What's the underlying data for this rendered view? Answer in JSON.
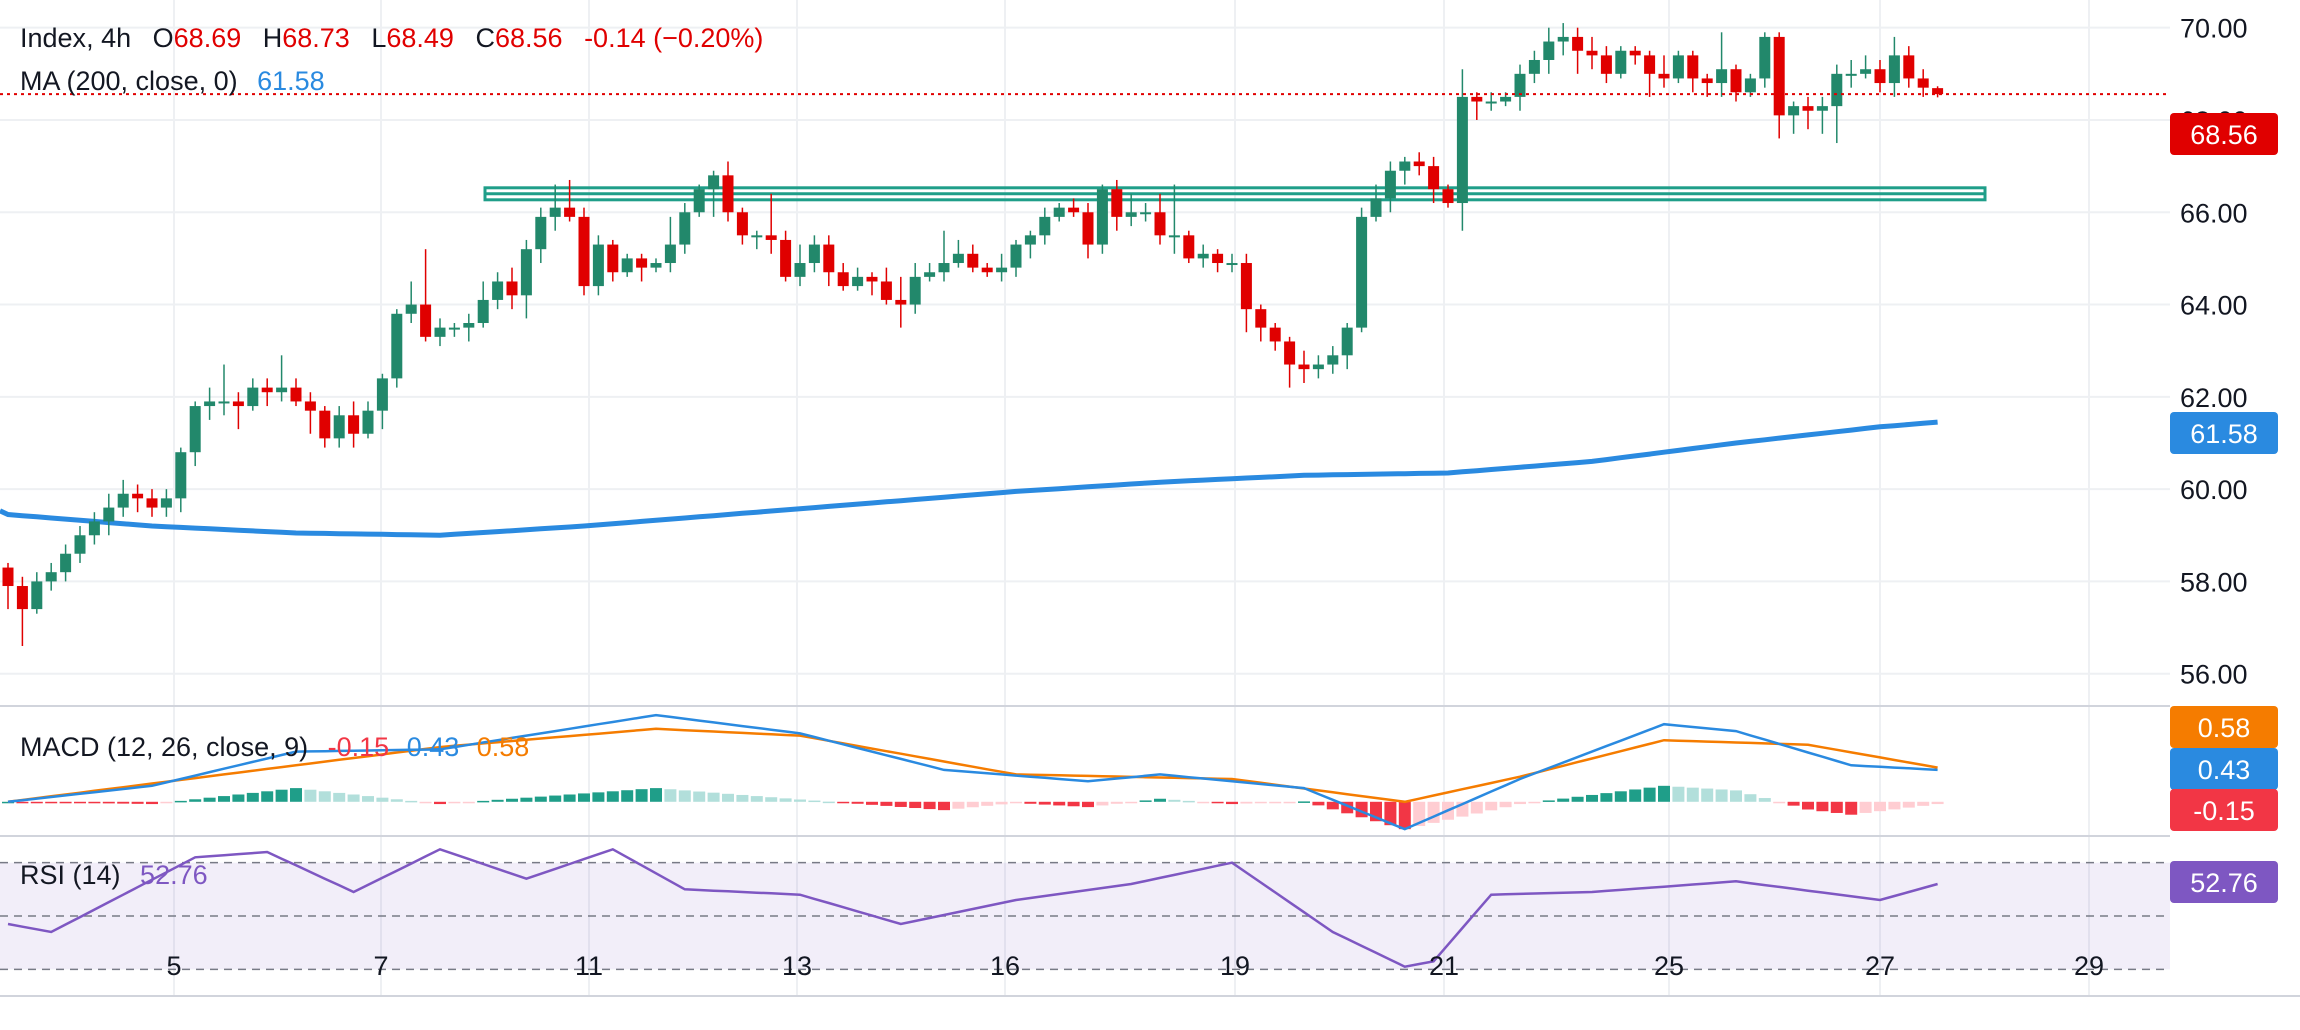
{
  "header": {
    "symbol": "Index",
    "timeframe": "4h",
    "o_label": "O",
    "o_value": "68.69",
    "h_label": "H",
    "h_value": "68.73",
    "l_label": "L",
    "l_value": "68.49",
    "c_label": "C",
    "c_value": "68.56",
    "change": "-0.14 (−0.20%)"
  },
  "ma_legend": {
    "label": "MA (200, close, 0)",
    "value": "61.58"
  },
  "macd_legend": {
    "label": "MACD (12, 26, close, 9)",
    "hist": "-0.15",
    "macd": "0.43",
    "signal": "0.58"
  },
  "rsi_legend": {
    "label": "RSI (14)",
    "value": "52.76"
  },
  "badges": {
    "price": "68.56",
    "ma": "61.58",
    "signal": "0.58",
    "macd": "0.43",
    "hist": "-0.15",
    "rsi": "52.76"
  },
  "colors": {
    "up": "#26a69a",
    "up_body": "#22886b",
    "down": "#f23645",
    "down_body": "#e00000",
    "ma": "#2a8ae0",
    "macd": "#2a8ae0",
    "signal": "#f57c00",
    "rsi": "#7e57c2",
    "level": "#1f9e89",
    "price_line": "#e00000"
  },
  "chart_data": {
    "type": "candlestick",
    "instrument": "Index",
    "timeframe": "4h",
    "x_ticks": [
      "5",
      "7",
      "11",
      "13",
      "16",
      "19",
      "21",
      "25",
      "27",
      "29"
    ],
    "y_ticks": [
      "56.00",
      "58.00",
      "60.00",
      "62.00",
      "64.00",
      "66.00",
      "68.00",
      "70.00"
    ],
    "ylim": [
      55.3,
      70.6
    ],
    "current_price": 68.56,
    "horizontal_level": 66.4,
    "candles": [
      [
        58.3,
        57.9,
        58.4,
        57.4
      ],
      [
        57.9,
        57.4,
        58.1,
        56.6
      ],
      [
        57.4,
        58.0,
        58.2,
        57.3
      ],
      [
        58.0,
        58.2,
        58.4,
        57.8
      ],
      [
        58.2,
        58.6,
        58.8,
        58.0
      ],
      [
        58.6,
        59.0,
        59.2,
        58.4
      ],
      [
        59.0,
        59.3,
        59.5,
        58.8
      ],
      [
        59.3,
        59.6,
        59.9,
        59.0
      ],
      [
        59.6,
        59.9,
        60.2,
        59.4
      ],
      [
        59.9,
        59.8,
        60.1,
        59.5
      ],
      [
        59.8,
        59.6,
        60.0,
        59.4
      ],
      [
        59.6,
        59.8,
        60.0,
        59.4
      ],
      [
        59.8,
        60.8,
        60.9,
        59.5
      ],
      [
        60.8,
        61.8,
        61.9,
        60.5
      ],
      [
        61.8,
        61.9,
        62.2,
        61.5
      ],
      [
        61.9,
        61.9,
        62.7,
        61.6
      ],
      [
        61.9,
        61.8,
        62.1,
        61.3
      ],
      [
        61.8,
        62.2,
        62.4,
        61.7
      ],
      [
        62.2,
        62.1,
        62.4,
        61.8
      ],
      [
        62.1,
        62.2,
        62.9,
        61.9
      ],
      [
        62.2,
        61.9,
        62.4,
        61.8
      ],
      [
        61.9,
        61.7,
        62.1,
        61.2
      ],
      [
        61.7,
        61.1,
        61.8,
        60.9
      ],
      [
        61.1,
        61.6,
        61.8,
        60.9
      ],
      [
        61.6,
        61.2,
        61.9,
        60.9
      ],
      [
        61.2,
        61.7,
        61.9,
        61.1
      ],
      [
        61.7,
        62.4,
        62.5,
        61.3
      ],
      [
        62.4,
        63.8,
        63.9,
        62.2
      ],
      [
        63.8,
        64.0,
        64.5,
        63.6
      ],
      [
        64.0,
        63.3,
        65.2,
        63.2
      ],
      [
        63.3,
        63.5,
        63.7,
        63.1
      ],
      [
        63.5,
        63.5,
        63.6,
        63.3
      ],
      [
        63.5,
        63.6,
        63.8,
        63.2
      ],
      [
        63.6,
        64.1,
        64.5,
        63.5
      ],
      [
        64.1,
        64.5,
        64.7,
        63.9
      ],
      [
        64.5,
        64.2,
        64.8,
        63.9
      ],
      [
        64.2,
        65.2,
        65.4,
        63.7
      ],
      [
        65.2,
        65.9,
        66.1,
        64.9
      ],
      [
        65.9,
        66.1,
        66.6,
        65.6
      ],
      [
        66.1,
        65.9,
        66.7,
        65.8
      ],
      [
        65.9,
        64.4,
        66.1,
        64.2
      ],
      [
        64.4,
        65.3,
        65.5,
        64.2
      ],
      [
        65.3,
        64.7,
        65.4,
        64.5
      ],
      [
        64.7,
        65.0,
        65.1,
        64.6
      ],
      [
        65.0,
        64.8,
        65.1,
        64.5
      ],
      [
        64.8,
        64.9,
        65.0,
        64.7
      ],
      [
        64.9,
        65.3,
        65.9,
        64.7
      ],
      [
        65.3,
        66.0,
        66.2,
        65.1
      ],
      [
        66.0,
        66.5,
        66.6,
        65.9
      ],
      [
        66.5,
        66.8,
        66.9,
        65.9
      ],
      [
        66.8,
        66.0,
        67.1,
        65.8
      ],
      [
        66.0,
        65.5,
        66.1,
        65.3
      ],
      [
        65.5,
        65.5,
        65.6,
        65.2
      ],
      [
        65.5,
        65.4,
        66.4,
        65.1
      ],
      [
        65.4,
        64.6,
        65.6,
        64.5
      ],
      [
        64.6,
        64.9,
        65.3,
        64.4
      ],
      [
        64.9,
        65.3,
        65.5,
        64.7
      ],
      [
        65.3,
        64.7,
        65.5,
        64.4
      ],
      [
        64.7,
        64.4,
        64.9,
        64.3
      ],
      [
        64.4,
        64.6,
        64.8,
        64.3
      ],
      [
        64.6,
        64.5,
        64.7,
        64.2
      ],
      [
        64.5,
        64.1,
        64.8,
        64.0
      ],
      [
        64.1,
        64.0,
        64.6,
        63.5
      ],
      [
        64.0,
        64.6,
        64.9,
        63.8
      ],
      [
        64.6,
        64.7,
        64.9,
        64.5
      ],
      [
        64.7,
        64.9,
        65.6,
        64.5
      ],
      [
        64.9,
        65.1,
        65.4,
        64.8
      ],
      [
        65.1,
        64.8,
        65.3,
        64.7
      ],
      [
        64.8,
        64.7,
        64.9,
        64.6
      ],
      [
        64.7,
        64.8,
        65.1,
        64.5
      ],
      [
        64.8,
        65.3,
        65.4,
        64.6
      ],
      [
        65.3,
        65.5,
        65.6,
        65.0
      ],
      [
        65.5,
        65.9,
        66.1,
        65.3
      ],
      [
        65.9,
        66.1,
        66.2,
        65.8
      ],
      [
        66.1,
        66.0,
        66.3,
        65.9
      ],
      [
        66.0,
        65.3,
        66.2,
        65.0
      ],
      [
        65.3,
        66.5,
        66.6,
        65.1
      ],
      [
        66.5,
        65.9,
        66.7,
        65.6
      ],
      [
        65.9,
        66.0,
        66.4,
        65.7
      ],
      [
        66.0,
        66.0,
        66.2,
        65.8
      ],
      [
        66.0,
        65.5,
        66.4,
        65.3
      ],
      [
        65.5,
        65.5,
        66.6,
        65.1
      ],
      [
        65.5,
        65.0,
        65.6,
        64.9
      ],
      [
        65.0,
        65.1,
        65.3,
        64.8
      ],
      [
        65.1,
        64.9,
        65.2,
        64.7
      ],
      [
        64.9,
        64.9,
        65.1,
        64.7
      ],
      [
        64.9,
        63.9,
        65.1,
        63.4
      ],
      [
        63.9,
        63.5,
        64.0,
        63.2
      ],
      [
        63.5,
        63.2,
        63.6,
        63.0
      ],
      [
        63.2,
        62.7,
        63.3,
        62.2
      ],
      [
        62.7,
        62.6,
        63.0,
        62.3
      ],
      [
        62.6,
        62.7,
        62.9,
        62.4
      ],
      [
        62.7,
        62.9,
        63.1,
        62.5
      ],
      [
        62.9,
        63.5,
        63.6,
        62.6
      ],
      [
        63.5,
        65.9,
        66.1,
        63.4
      ],
      [
        65.9,
        66.3,
        66.6,
        65.8
      ],
      [
        66.3,
        66.9,
        67.1,
        66.0
      ],
      [
        66.9,
        67.1,
        67.2,
        66.6
      ],
      [
        67.1,
        67.0,
        67.3,
        66.8
      ],
      [
        67.0,
        66.5,
        67.2,
        66.2
      ],
      [
        66.5,
        66.2,
        66.6,
        66.1
      ],
      [
        66.2,
        68.5,
        69.1,
        65.6
      ],
      [
        68.5,
        68.4,
        68.6,
        68.0
      ],
      [
        68.4,
        68.4,
        68.6,
        68.2
      ],
      [
        68.4,
        68.5,
        68.6,
        68.3
      ],
      [
        68.5,
        69.0,
        69.2,
        68.2
      ],
      [
        69.0,
        69.3,
        69.5,
        68.8
      ],
      [
        69.3,
        69.7,
        70.0,
        69.0
      ],
      [
        69.7,
        69.8,
        70.1,
        69.4
      ],
      [
        69.8,
        69.5,
        70.0,
        69.0
      ],
      [
        69.5,
        69.4,
        69.8,
        69.1
      ],
      [
        69.4,
        69.0,
        69.6,
        68.8
      ],
      [
        69.0,
        69.5,
        69.6,
        68.9
      ],
      [
        69.5,
        69.4,
        69.6,
        69.2
      ],
      [
        69.4,
        69.0,
        69.5,
        68.5
      ],
      [
        69.0,
        68.9,
        69.4,
        68.7
      ],
      [
        68.9,
        69.4,
        69.5,
        68.8
      ],
      [
        69.4,
        68.9,
        69.5,
        68.6
      ],
      [
        68.9,
        68.8,
        69.0,
        68.5
      ],
      [
        68.8,
        69.1,
        69.9,
        68.5
      ],
      [
        69.1,
        68.6,
        69.2,
        68.4
      ],
      [
        68.6,
        68.9,
        69.0,
        68.5
      ],
      [
        68.9,
        69.8,
        69.9,
        68.7
      ],
      [
        69.8,
        68.1,
        69.9,
        67.6
      ],
      [
        68.1,
        68.3,
        68.4,
        67.7
      ],
      [
        68.3,
        68.2,
        68.5,
        67.8
      ],
      [
        68.2,
        68.3,
        68.5,
        67.7
      ],
      [
        68.3,
        69.0,
        69.2,
        67.5
      ],
      [
        69.0,
        69.0,
        69.3,
        68.7
      ],
      [
        69.0,
        69.1,
        69.4,
        68.9
      ],
      [
        69.1,
        68.8,
        69.3,
        68.6
      ],
      [
        68.8,
        69.4,
        69.8,
        68.5
      ],
      [
        69.4,
        68.9,
        69.6,
        68.7
      ],
      [
        68.9,
        68.7,
        69.1,
        68.5
      ],
      [
        68.69,
        68.56,
        68.73,
        68.49
      ]
    ],
    "series": [
      {
        "name": "MA (200, close, 0)",
        "last": 61.58,
        "points": [
          [
            0,
            59.45
          ],
          [
            10,
            59.2
          ],
          [
            20,
            59.05
          ],
          [
            30,
            59.0
          ],
          [
            40,
            59.2
          ],
          [
            50,
            59.45
          ],
          [
            60,
            59.7
          ],
          [
            70,
            59.95
          ],
          [
            80,
            60.15
          ],
          [
            90,
            60.3
          ],
          [
            100,
            60.35
          ],
          [
            110,
            60.6
          ],
          [
            120,
            61.0
          ],
          [
            130,
            61.35
          ],
          [
            139,
            61.58
          ]
        ]
      }
    ],
    "macd": {
      "label": "MACD (12, 26, close, 9)",
      "ylim": [
        -0.75,
        2.1
      ],
      "macd_line": [
        [
          0,
          0
        ],
        [
          10,
          0.35
        ],
        [
          20,
          1.1
        ],
        [
          30,
          1.15
        ],
        [
          40,
          1.65
        ],
        [
          45,
          1.9
        ],
        [
          55,
          1.5
        ],
        [
          65,
          0.7
        ],
        [
          75,
          0.45
        ],
        [
          80,
          0.6
        ],
        [
          90,
          0.3
        ],
        [
          97,
          -0.6
        ],
        [
          105,
          0.5
        ],
        [
          115,
          1.7
        ],
        [
          120,
          1.55
        ],
        [
          128,
          0.8
        ],
        [
          134,
          0.7
        ],
        [
          139,
          0.43
        ]
      ],
      "signal_line": [
        [
          0,
          0
        ],
        [
          15,
          0.6
        ],
        [
          30,
          1.2
        ],
        [
          45,
          1.6
        ],
        [
          55,
          1.45
        ],
        [
          70,
          0.6
        ],
        [
          85,
          0.5
        ],
        [
          97,
          0.0
        ],
        [
          105,
          0.55
        ],
        [
          115,
          1.35
        ],
        [
          125,
          1.25
        ],
        [
          134,
          0.75
        ],
        [
          139,
          0.58
        ]
      ],
      "histogram_last": -0.15
    },
    "rsi": {
      "label": "RSI (14)",
      "ylim": [
        20,
        80
      ],
      "bands": [
        70,
        50,
        30
      ],
      "line": [
        [
          0,
          47
        ],
        [
          3,
          44
        ],
        [
          8,
          58
        ],
        [
          13,
          72
        ],
        [
          18,
          74
        ],
        [
          24,
          59
        ],
        [
          30,
          75
        ],
        [
          36,
          64
        ],
        [
          42,
          75
        ],
        [
          47,
          60
        ],
        [
          55,
          58
        ],
        [
          62,
          47
        ],
        [
          70,
          56
        ],
        [
          78,
          62
        ],
        [
          85,
          70
        ],
        [
          92,
          44
        ],
        [
          97,
          31
        ],
        [
          99,
          33
        ],
        [
          103,
          58
        ],
        [
          110,
          59
        ],
        [
          120,
          63
        ],
        [
          130,
          56
        ],
        [
          134,
          62
        ],
        [
          139,
          52.76
        ]
      ],
      "last": 52.76
    }
  }
}
